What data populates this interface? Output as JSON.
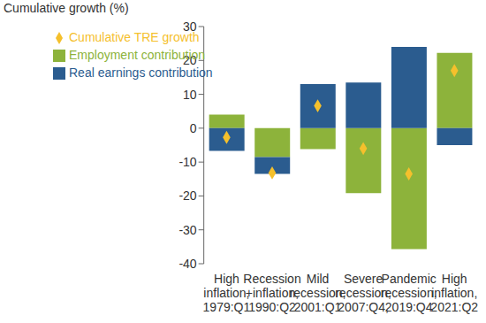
{
  "chart_data": {
    "type": "bar",
    "stacked": true,
    "y_label": "Cumulative growth (%)",
    "categories": [
      "High\ninflation,\n1979:Q1",
      "Recession\n+inflation,\n1990:Q2",
      "Mild\nrecession,\n2001:Q1",
      "Severe\nrecession,\n2007:Q4,",
      "Pandemic\nrecession,\n2019:Q4",
      "High\ninflation,\n2021:Q2"
    ],
    "series": [
      {
        "name": "Employment contribution",
        "color": "#8db33b",
        "values": [
          4,
          -8.5,
          -6.2,
          -19.2,
          -35.7,
          22.2
        ]
      },
      {
        "name": "Real earnings contribution",
        "color": "#2b5c8f",
        "values": [
          -6.7,
          -5,
          13,
          13.5,
          24,
          -5
        ]
      },
      {
        "name": "Cumulative TRE growth",
        "type": "scatter",
        "marker": "diamond",
        "color": "#f5c02c",
        "values": [
          -2.7,
          -13.2,
          6.6,
          -6,
          -13.5,
          17
        ]
      }
    ],
    "ylim": [
      -40,
      30
    ],
    "yticks": [
      -40,
      -30,
      -20,
      -10,
      0,
      10,
      20,
      30
    ],
    "legend": "upper left"
  }
}
